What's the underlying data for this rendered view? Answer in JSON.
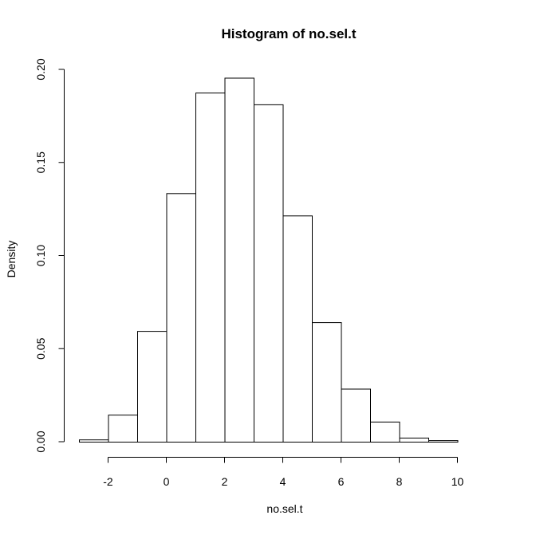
{
  "chart_data": {
    "type": "bar",
    "title": "Histogram of no.sel.t",
    "xlabel": "no.sel.t",
    "ylabel": "Density",
    "bin_edges": [
      -3,
      -2,
      -1,
      0,
      1,
      2,
      3,
      4,
      5,
      6,
      7,
      8,
      9,
      10
    ],
    "values": [
      0.0012,
      0.0145,
      0.0595,
      0.1335,
      0.1875,
      0.1955,
      0.1812,
      0.1215,
      0.0642,
      0.0285,
      0.0108,
      0.0022,
      0.0008
    ],
    "xlim": [
      -3,
      11
    ],
    "ylim": [
      0,
      0.2
    ],
    "x_ticks": [
      "-2",
      "0",
      "2",
      "4",
      "6",
      "8",
      "10"
    ],
    "y_ticks": [
      "0.00",
      "0.05",
      "0.10",
      "0.15",
      "0.20"
    ],
    "grid": false,
    "colors": {
      "fill": "#ffffff",
      "stroke": "#000000"
    }
  }
}
